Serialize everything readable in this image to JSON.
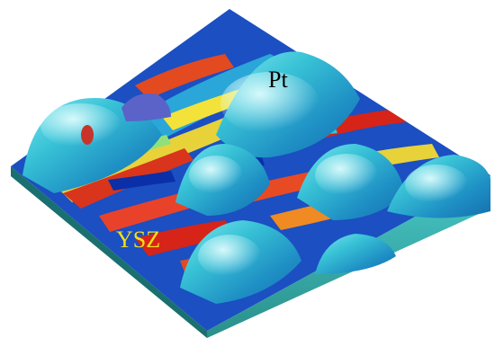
{
  "figure": {
    "labels": {
      "metal": "Pt",
      "substrate": "YSZ"
    },
    "colors": {
      "metal_label": "#000000",
      "substrate_label": "#f4e01a",
      "colormap": [
        "#0a2fa8",
        "#1f7cd8",
        "#34c7d8",
        "#8fe07a",
        "#f2e23a",
        "#f08a22",
        "#d62418",
        "#8a1410"
      ]
    }
  }
}
